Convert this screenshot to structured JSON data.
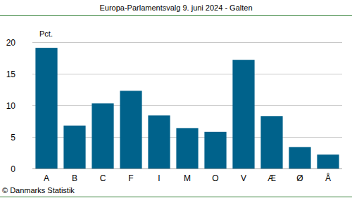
{
  "chart_data": {
    "type": "bar",
    "title": "Europa-Parlamentsvalg 9. juni 2024 - Galten",
    "y_label": "Pct.",
    "source": "© Danmarks Statistik",
    "categories": [
      "A",
      "B",
      "C",
      "F",
      "I",
      "M",
      "O",
      "V",
      "Æ",
      "Ø",
      "Å"
    ],
    "values": [
      19.1,
      6.8,
      10.3,
      12.3,
      8.4,
      6.4,
      5.8,
      17.2,
      8.3,
      3.4,
      2.2
    ],
    "color": "#00628b",
    "ylim": [
      0,
      20
    ],
    "yticks": [
      0,
      5,
      10,
      15,
      20
    ],
    "grid": true
  }
}
